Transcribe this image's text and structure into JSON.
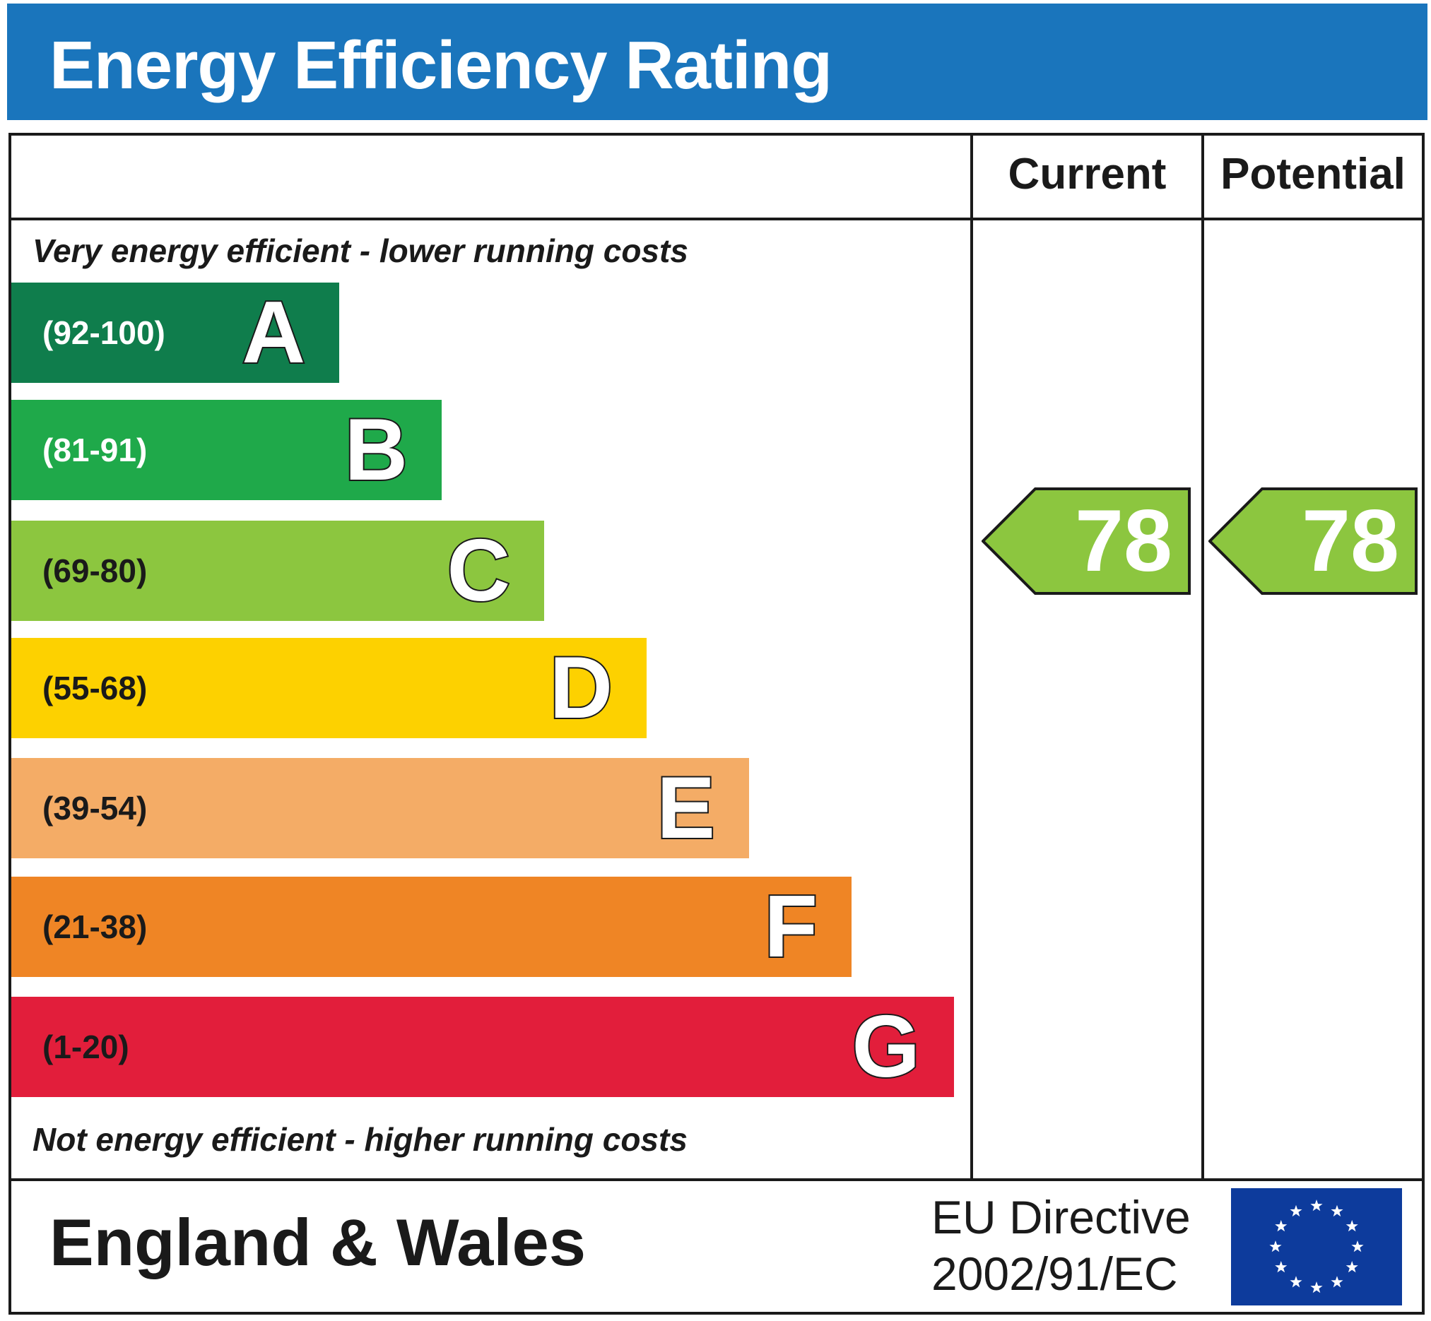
{
  "header": {
    "title": "Energy Efficiency Rating"
  },
  "columns": {
    "current": "Current",
    "potential": "Potential"
  },
  "notes": {
    "top": "Very energy efficient - lower running costs",
    "bottom": "Not energy efficient - higher running costs"
  },
  "chart_data": {
    "type": "bar",
    "title": "Energy Efficiency Rating",
    "bands": [
      {
        "range": "(92-100)",
        "letter": "A",
        "min": 92,
        "max": 100,
        "color": "#0f7d4c",
        "text_color": "#ffffff"
      },
      {
        "range": "(81-91)",
        "letter": "B",
        "min": 81,
        "max": 91,
        "color": "#1fa94a",
        "text_color": "#ffffff"
      },
      {
        "range": "(69-80)",
        "letter": "C",
        "min": 69,
        "max": 80,
        "color": "#8cc63f",
        "text_color": "#1a1a1a"
      },
      {
        "range": "(55-68)",
        "letter": "D",
        "min": 55,
        "max": 68,
        "color": "#fdd100",
        "text_color": "#1a1a1a"
      },
      {
        "range": "(39-54)",
        "letter": "E",
        "min": 39,
        "max": 54,
        "color": "#f4ac66",
        "text_color": "#1a1a1a"
      },
      {
        "range": "(21-38)",
        "letter": "F",
        "min": 21,
        "max": 38,
        "color": "#ef8525",
        "text_color": "#1a1a1a"
      },
      {
        "range": "(1-20)",
        "letter": "G",
        "min": 1,
        "max": 20,
        "color": "#e21e3b",
        "text_color": "#1a1a1a"
      }
    ],
    "current": {
      "value": "78",
      "band": "C",
      "color": "#8cc63f"
    },
    "potential": {
      "value": "78",
      "band": "C",
      "color": "#8cc63f"
    }
  },
  "footer": {
    "region": "England & Wales",
    "directive_line1": "EU Directive",
    "directive_line2": "2002/91/EC",
    "flag_colors": {
      "background": "#0d3b9c",
      "stars": "#ffffff"
    }
  }
}
